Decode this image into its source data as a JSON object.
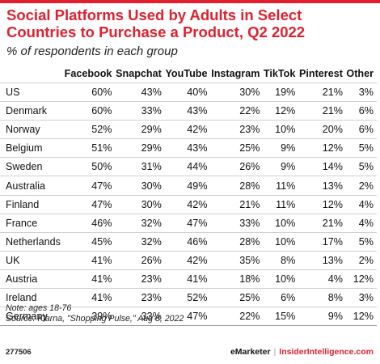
{
  "chart_data": {
    "type": "table",
    "title": "Social Platforms Used by Adults in Select Countries to Purchase a Product, Q2 2022",
    "subtitle": "% of respondents in each group",
    "columns": [
      "Facebook",
      "Snapchat",
      "YouTube",
      "Instagram",
      "TikTok",
      "Pinterest",
      "Other"
    ],
    "rows": [
      {
        "country": "US",
        "values": [
          "60%",
          "43%",
          "40%",
          "30%",
          "19%",
          "21%",
          "3%"
        ]
      },
      {
        "country": "Denmark",
        "values": [
          "60%",
          "33%",
          "43%",
          "22%",
          "12%",
          "21%",
          "6%"
        ]
      },
      {
        "country": "Norway",
        "values": [
          "52%",
          "29%",
          "42%",
          "23%",
          "10%",
          "20%",
          "6%"
        ]
      },
      {
        "country": "Belgium",
        "values": [
          "51%",
          "29%",
          "43%",
          "25%",
          "9%",
          "12%",
          "5%"
        ]
      },
      {
        "country": "Sweden",
        "values": [
          "50%",
          "31%",
          "44%",
          "26%",
          "9%",
          "14%",
          "5%"
        ]
      },
      {
        "country": "Australia",
        "values": [
          "47%",
          "30%",
          "49%",
          "28%",
          "11%",
          "13%",
          "2%"
        ]
      },
      {
        "country": "Finland",
        "values": [
          "47%",
          "30%",
          "42%",
          "21%",
          "11%",
          "12%",
          "4%"
        ]
      },
      {
        "country": "France",
        "values": [
          "46%",
          "32%",
          "47%",
          "33%",
          "10%",
          "21%",
          "4%"
        ]
      },
      {
        "country": "Netherlands",
        "values": [
          "45%",
          "32%",
          "46%",
          "28%",
          "10%",
          "17%",
          "5%"
        ]
      },
      {
        "country": "UK",
        "values": [
          "41%",
          "26%",
          "42%",
          "35%",
          "8%",
          "13%",
          "2%"
        ]
      },
      {
        "country": "Austria",
        "values": [
          "41%",
          "23%",
          "41%",
          "18%",
          "10%",
          "4%",
          "12%"
        ]
      },
      {
        "country": "Ireland",
        "values": [
          "41%",
          "23%",
          "52%",
          "25%",
          "6%",
          "8%",
          "3%"
        ]
      },
      {
        "country": "Germany",
        "values": [
          "39%",
          "33%",
          "47%",
          "22%",
          "15%",
          "9%",
          "12%"
        ]
      }
    ]
  },
  "footer": {
    "note": "Note: ages 18-76",
    "source": "Source: Klarna, \"Shopping Pulse,\" Aug 8, 2022",
    "chart_id": "277506",
    "brand_1": "eMarketer",
    "separator": "|",
    "brand_2": "InsiderIntelligence.com"
  },
  "colors": {
    "accent": "#e0202f",
    "row_rule": "#cfcfcf"
  }
}
